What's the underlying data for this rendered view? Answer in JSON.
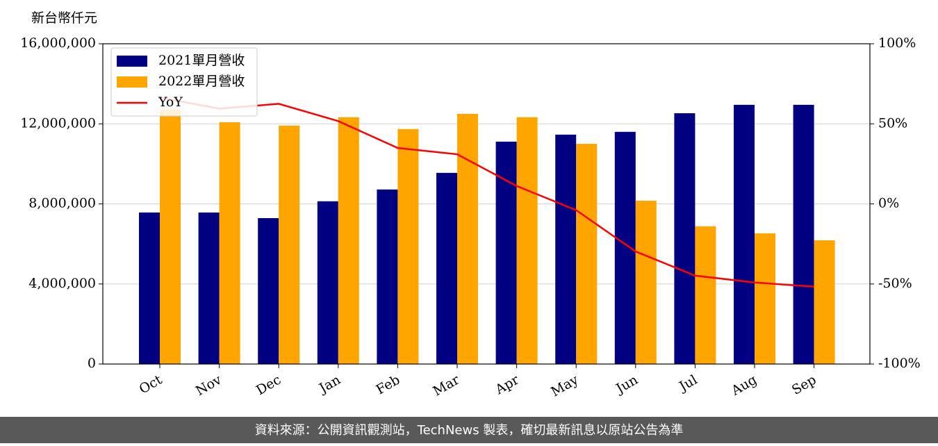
{
  "chart_data": {
    "type": "bar_line",
    "y_axis_label": "新台幣仟元",
    "categories": [
      "Oct",
      "Nov",
      "Dec",
      "Jan",
      "Feb",
      "Mar",
      "Apr",
      "May",
      "Jun",
      "Jul",
      "Aug",
      "Sep"
    ],
    "series": [
      {
        "name": "2021單月營收",
        "color": "#000080",
        "type": "bar",
        "values": [
          7570000,
          7570000,
          7290000,
          8130000,
          8720000,
          9550000,
          11110000,
          11460000,
          11600000,
          12530000,
          12950000,
          12950000
        ]
      },
      {
        "name": "2022單月營收",
        "color": "#ffa500",
        "type": "bar",
        "values": [
          12710000,
          12080000,
          11910000,
          12330000,
          11740000,
          12500000,
          12330000,
          11000000,
          8160000,
          6880000,
          6530000,
          6180000
        ]
      },
      {
        "name": "YoY",
        "color": "#ff0000",
        "type": "line",
        "axis": "y2",
        "values": [
          66.4,
          59.5,
          62.5,
          51.7,
          34.9,
          31.0,
          11.2,
          -3.9,
          -29.7,
          -44.8,
          -49.1,
          -51.7
        ]
      }
    ],
    "ylim": [
      0,
      16000000
    ],
    "yticks": [
      0,
      {
        "value": 4000000,
        "label": "4,000,000"
      },
      {
        "value": 8000000,
        "label": "8,000,000"
      },
      {
        "value": 12000000,
        "label": "12,000,000"
      },
      {
        "value": 16000000,
        "label": "16,000,000"
      }
    ],
    "y2lim": [
      -100,
      100
    ],
    "y2ticks": [
      {
        "value": -100,
        "label": "-100%"
      },
      {
        "value": -50,
        "label": "-50%"
      },
      {
        "value": 0,
        "label": "0%"
      },
      {
        "value": 50,
        "label": "50%"
      },
      {
        "value": 100,
        "label": "100%"
      }
    ],
    "grid": true,
    "legend": "upper left",
    "footer": "資料來源：公開資訊觀測站，TechNews 製表，確切最新訊息以原站公告為準"
  }
}
